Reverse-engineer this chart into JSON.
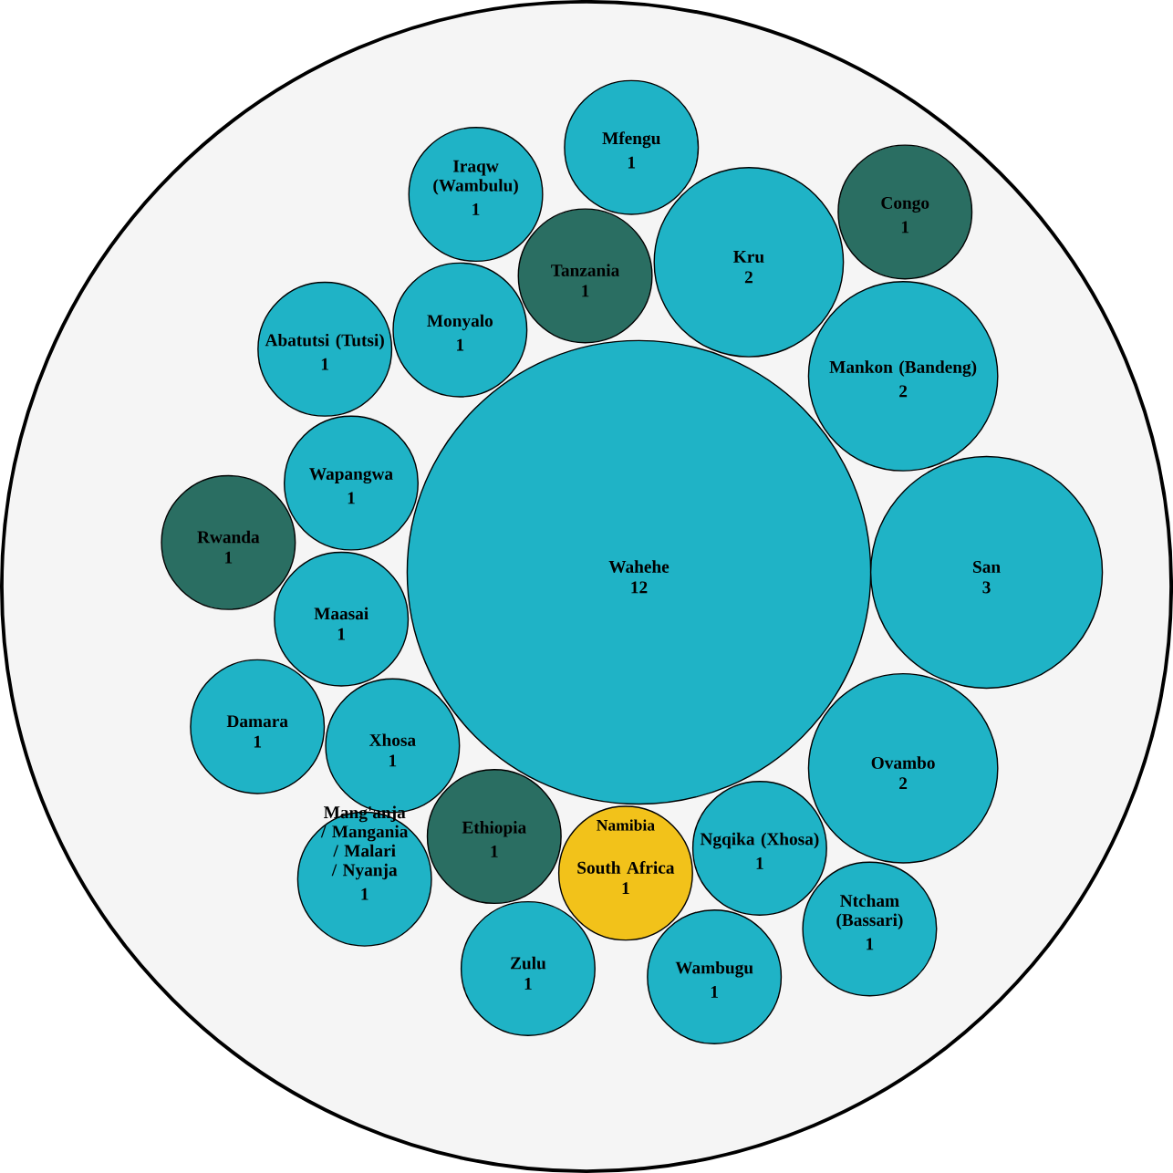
{
  "chart_data": {
    "type": "other",
    "categories": [
      "Wahehe",
      "San",
      "Mankon (Bandeng)",
      "Ovambo",
      "Kru",
      "Ngqika (Xhosa)",
      "South Africa",
      "Ethiopia",
      "Tanzania",
      "Xhosa",
      "Maasai",
      "Monyalo",
      "Wapangwa",
      "Abatutsi (Tutsi)",
      "Wambugu",
      "Zulu",
      "Iraqw (Wambulu)",
      "Damara",
      "Mang'anja / Mangania / Malari / Nyanja",
      "Rwanda",
      "Mfengu",
      "Ntcham (Bassari)",
      "Congo"
    ],
    "values": [
      12,
      3,
      2,
      2,
      2,
      1,
      1,
      1,
      1,
      1,
      1,
      1,
      1,
      1,
      1,
      1,
      1,
      1,
      1,
      1,
      1,
      1,
      1
    ],
    "colors": [
      "#1fb3c6",
      "#1fb3c6",
      "#1fb3c6",
      "#1fb3c6",
      "#1fb3c6",
      "#1fb3c6",
      "#f2c21a",
      "#2a6e62",
      "#2a6e62",
      "#1fb3c6",
      "#1fb3c6",
      "#1fb3c6",
      "#1fb3c6",
      "#1fb3c6",
      "#1fb3c6",
      "#1fb3c6",
      "#1fb3c6",
      "#1fb3c6",
      "#1fb3c6",
      "#2a6e62",
      "#1fb3c6",
      "#1fb3c6",
      "#2a6e62"
    ],
    "data_labels": true,
    "annotations": [
      "Namibia"
    ]
  }
}
